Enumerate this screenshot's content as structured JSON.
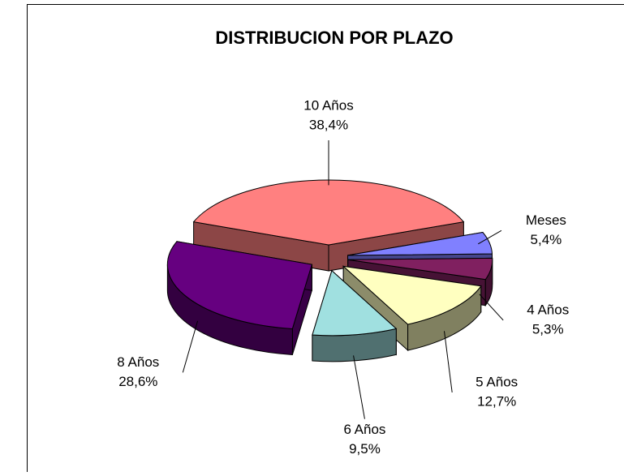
{
  "chart_data": {
    "type": "pie3d",
    "title": "DISTRIBUCION POR PLAZO",
    "categories": [
      "10 Años",
      "Meses",
      "4 Años",
      "5 Años",
      "6 Años",
      "8 Años"
    ],
    "values": [
      38.4,
      5.4,
      5.3,
      12.7,
      9.5,
      28.6
    ],
    "value_labels": [
      "38,4%",
      "5,4%",
      "5,3%",
      "12,7%",
      "9,5%",
      "28,6%"
    ],
    "colors": [
      "#ff8080",
      "#8080ff",
      "#802060",
      "#ffffc0",
      "#a0e0e0",
      "#660080"
    ]
  }
}
